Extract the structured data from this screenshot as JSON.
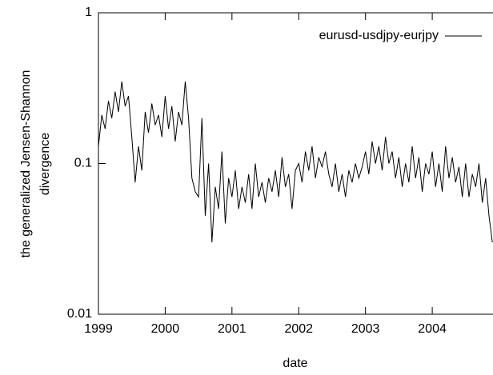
{
  "chart_data": {
    "type": "line",
    "xlabel": "date",
    "ylabel": [
      "the generalized Jensen-Shannon",
      "divergence"
    ],
    "x": [
      1999.0,
      1999.05,
      1999.1,
      1999.15,
      1999.2,
      1999.25,
      1999.3,
      1999.35,
      1999.4,
      1999.45,
      1999.5,
      1999.55,
      1999.6,
      1999.65,
      1999.7,
      1999.75,
      1999.8,
      1999.85,
      1999.9,
      1999.95,
      2000.0,
      2000.05,
      2000.1,
      2000.15,
      2000.2,
      2000.25,
      2000.3,
      2000.35,
      2000.4,
      2000.45,
      2000.5,
      2000.55,
      2000.6,
      2000.65,
      2000.7,
      2000.75,
      2000.8,
      2000.85,
      2000.9,
      2000.95,
      2001.0,
      2001.05,
      2001.1,
      2001.15,
      2001.2,
      2001.25,
      2001.3,
      2001.35,
      2001.4,
      2001.45,
      2001.5,
      2001.55,
      2001.6,
      2001.65,
      2001.7,
      2001.75,
      2001.8,
      2001.85,
      2001.9,
      2001.95,
      2002.0,
      2002.05,
      2002.1,
      2002.15,
      2002.2,
      2002.25,
      2002.3,
      2002.35,
      2002.4,
      2002.45,
      2002.5,
      2002.55,
      2002.6,
      2002.65,
      2002.7,
      2002.75,
      2002.8,
      2002.85,
      2002.9,
      2002.95,
      2003.0,
      2003.05,
      2003.1,
      2003.15,
      2003.2,
      2003.25,
      2003.3,
      2003.35,
      2003.4,
      2003.45,
      2003.5,
      2003.55,
      2003.6,
      2003.65,
      2003.7,
      2003.75,
      2003.8,
      2003.85,
      2003.9,
      2003.95,
      2004.0,
      2004.05,
      2004.1,
      2004.15,
      2004.2,
      2004.25,
      2004.3,
      2004.35,
      2004.4,
      2004.45,
      2004.5,
      2004.55,
      2004.6,
      2004.65,
      2004.7,
      2004.75,
      2004.8,
      2004.85,
      2004.9
    ],
    "series": [
      {
        "name": "eurusd-usdjpy-eurjpy",
        "color": "#000000",
        "values": [
          0.13,
          0.21,
          0.17,
          0.26,
          0.2,
          0.3,
          0.22,
          0.35,
          0.24,
          0.28,
          0.15,
          0.075,
          0.13,
          0.09,
          0.22,
          0.16,
          0.25,
          0.18,
          0.21,
          0.15,
          0.28,
          0.17,
          0.24,
          0.14,
          0.22,
          0.18,
          0.35,
          0.2,
          0.08,
          0.065,
          0.06,
          0.2,
          0.045,
          0.1,
          0.03,
          0.07,
          0.05,
          0.12,
          0.04,
          0.08,
          0.06,
          0.09,
          0.05,
          0.07,
          0.055,
          0.085,
          0.05,
          0.1,
          0.06,
          0.075,
          0.055,
          0.08,
          0.065,
          0.09,
          0.06,
          0.11,
          0.07,
          0.085,
          0.05,
          0.09,
          0.1,
          0.075,
          0.12,
          0.09,
          0.13,
          0.08,
          0.11,
          0.095,
          0.12,
          0.085,
          0.07,
          0.1,
          0.065,
          0.085,
          0.06,
          0.09,
          0.075,
          0.1,
          0.08,
          0.095,
          0.12,
          0.085,
          0.14,
          0.1,
          0.13,
          0.09,
          0.15,
          0.1,
          0.12,
          0.08,
          0.11,
          0.07,
          0.1,
          0.075,
          0.13,
          0.08,
          0.11,
          0.065,
          0.1,
          0.085,
          0.12,
          0.07,
          0.1,
          0.065,
          0.13,
          0.08,
          0.11,
          0.075,
          0.095,
          0.06,
          0.1,
          0.06,
          0.085,
          0.07,
          0.1,
          0.055,
          0.08,
          0.045,
          0.03
        ]
      }
    ],
    "xlim": [
      1999,
      2004.91
    ],
    "xticks": [
      1999,
      2000,
      2001,
      2002,
      2003,
      2004
    ],
    "ylim": [
      0.01,
      1
    ],
    "yticks": [
      0.01,
      0.1,
      1
    ],
    "log_y": true,
    "grid": false,
    "legend": "top-right"
  }
}
